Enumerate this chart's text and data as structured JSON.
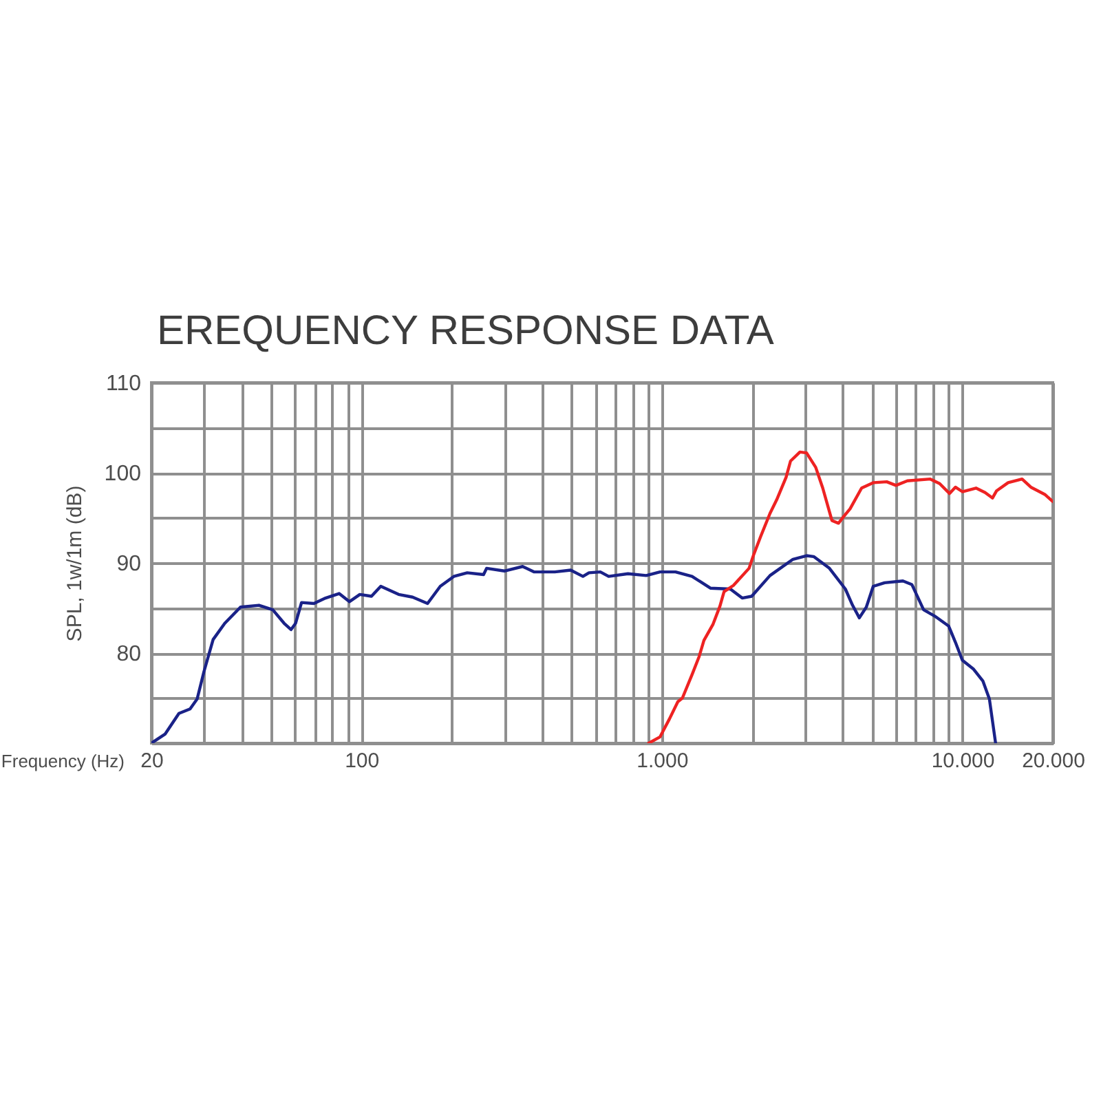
{
  "chart_data": {
    "type": "line",
    "title": "EREQUENCY RESPONSE DATA",
    "xlabel": "Frequency (Hz)",
    "ylabel": "SPL, 1w/1m (dB)",
    "log": "x",
    "xlim": [
      20,
      20000
    ],
    "xticks": [
      20,
      {
        "value": 30,
        "label": null
      },
      {
        "value": 40,
        "label": null
      },
      {
        "value": 50,
        "label": null
      },
      {
        "value": 60,
        "label": null
      },
      {
        "value": 70,
        "label": null
      },
      {
        "value": 80,
        "label": null
      },
      {
        "value": 90,
        "label": null
      },
      100,
      {
        "value": 200,
        "label": null
      },
      {
        "value": 300,
        "label": null
      },
      {
        "value": 400,
        "label": null
      },
      {
        "value": 500,
        "label": null
      },
      {
        "value": 600,
        "label": null
      },
      {
        "value": 700,
        "label": null
      },
      {
        "value": 800,
        "label": null
      },
      {
        "value": 900,
        "label": null
      },
      {
        "value": 1000,
        "label": "1.000"
      },
      {
        "value": 2000,
        "label": null
      },
      {
        "value": 3000,
        "label": null
      },
      {
        "value": 4000,
        "label": null
      },
      {
        "value": 5000,
        "label": null
      },
      {
        "value": 6000,
        "label": null
      },
      {
        "value": 7000,
        "label": null
      },
      {
        "value": 8000,
        "label": null
      },
      {
        "value": 9000,
        "label": null
      },
      {
        "value": 10000,
        "label": "10.000"
      },
      {
        "value": 20000,
        "label": "20.000"
      }
    ],
    "ylim": [
      70,
      110
    ],
    "yticks": [
      {
        "value": 70,
        "label": null
      },
      {
        "value": 75,
        "label": null
      },
      80,
      {
        "value": 85,
        "label": null
      },
      90,
      {
        "value": 95,
        "label": null
      },
      100,
      {
        "value": 105,
        "label": null
      },
      110
    ],
    "grid": true,
    "series": [
      {
        "color": "#1a2288",
        "x": [
          20,
          22.2,
          24.7,
          26.9,
          28.4,
          29.9,
          32.1,
          35.1,
          39.6,
          45.6,
          50.7,
          55.3,
          58.3,
          60.4,
          63.2,
          69.5,
          76,
          84.3,
          91.2,
          98.8,
          108,
          116,
          133,
          148,
          166,
          183,
          203,
          225,
          255,
          261,
          299,
          344,
          375,
          440,
          497,
          546,
          572,
          624,
          665,
          771,
          887,
          986,
          1110,
          1260,
          1450,
          1690,
          1850,
          1990,
          2290,
          2730,
          3030,
          3200,
          3610,
          4080,
          4310,
          4540,
          4790,
          5050,
          5510,
          6340,
          6790,
          7430,
          8090,
          9000,
          9480,
          10000,
          10900,
          11700,
          12300,
          12900
        ],
        "values": [
          70,
          71,
          73.3,
          73.8,
          74.9,
          77.9,
          81.5,
          83.3,
          85.1,
          85.3,
          84.8,
          83.3,
          82.6,
          83.3,
          85.6,
          85.5,
          86.1,
          86.6,
          85.7,
          86.5,
          86.3,
          87.4,
          86.5,
          86.2,
          85.5,
          87.4,
          88.5,
          88.9,
          88.7,
          89.4,
          89.1,
          89.6,
          89,
          89,
          89.2,
          88.5,
          88.9,
          89,
          88.5,
          88.8,
          88.6,
          89,
          89,
          88.5,
          87.2,
          87.1,
          86.1,
          86.3,
          88.6,
          90.4,
          90.8,
          90.7,
          89.4,
          87.1,
          85.3,
          83.9,
          85.1,
          87.4,
          87.8,
          88,
          87.6,
          84.8,
          84.1,
          83,
          81.2,
          79.2,
          78.2,
          76.9,
          74.9,
          70
        ]
      },
      {
        "color": "#ee2222",
        "x": [
          904,
          986,
          1060,
          1130,
          1170,
          1260,
          1330,
          1380,
          1480,
          1560,
          1610,
          1730,
          1950,
          2020,
          2130,
          2290,
          2410,
          2590,
          2680,
          2880,
          3030,
          3250,
          3430,
          3680,
          3870,
          4040,
          4230,
          4620,
          5050,
          5600,
          6010,
          6560,
          7820,
          8400,
          9060,
          9480,
          10000,
          11100,
          11900,
          12600,
          13000,
          14200,
          15800,
          16900,
          18800,
          20000
        ],
        "values": [
          70,
          70.7,
          72.7,
          74.6,
          75,
          77.6,
          79.6,
          81.4,
          83.2,
          85.2,
          86.8,
          87.5,
          89.4,
          90.9,
          92.9,
          95.5,
          97,
          99.5,
          101.3,
          102.3,
          102.2,
          100.6,
          98.3,
          94.7,
          94.4,
          95.2,
          96,
          98.3,
          98.9,
          99,
          98.6,
          99.1,
          99.3,
          98.8,
          97.7,
          98.4,
          97.9,
          98.3,
          97.8,
          97.2,
          98,
          98.9,
          99.3,
          98.4,
          97.6,
          96.8
        ]
      }
    ]
  }
}
